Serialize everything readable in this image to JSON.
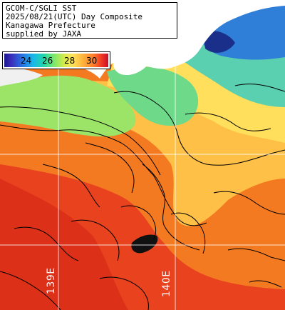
{
  "header": {
    "line1": "GCOM-C/SGLI SST",
    "line2": "2025/08/21(UTC) Day Composite",
    "line3": "Kanagawa Prefecture",
    "line4": "supplied by JAXA"
  },
  "colorbar": {
    "ticks": [
      "24",
      "26",
      "28",
      "30"
    ]
  },
  "grid": {
    "lon_labels": [
      "139E",
      "140E"
    ]
  },
  "colors": {
    "land": "#ffffff",
    "missing": "#111111",
    "warm_sea": "#f26a1c",
    "hot_sea": "#e2331c",
    "mid_sea": "#ffb33a",
    "cool_sea": "#8fe070",
    "cold_sea": "#2e76d6",
    "contour": "#000000",
    "gridline": "#ffffff"
  }
}
